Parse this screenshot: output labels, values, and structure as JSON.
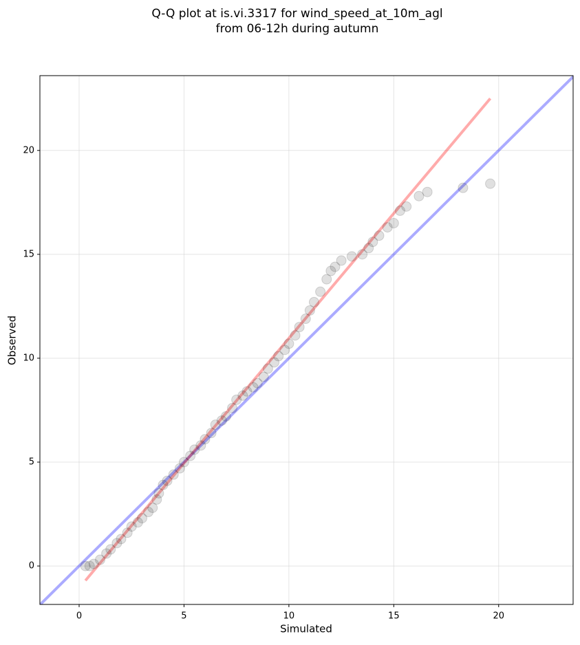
{
  "chart_data": {
    "type": "scatter",
    "title": [
      "Q-Q plot at is.vi.3317 for wind_speed_at_10m_agl",
      "from 06-12h during autumn"
    ],
    "xlabel": "Simulated",
    "ylabel": "Observed",
    "xlim": [
      -1.87,
      23.55
    ],
    "ylim": [
      -1.85,
      23.6
    ],
    "xticks": [
      0,
      5,
      10,
      15,
      20
    ],
    "yticks": [
      0,
      5,
      10,
      15,
      20
    ],
    "grid": true,
    "points": {
      "color": "#000000",
      "x": [
        0.3,
        0.5,
        0.7,
        1,
        1.3,
        1.5,
        1.8,
        2,
        2.3,
        2.5,
        2.8,
        3,
        3.3,
        3.5,
        3.7,
        3.8,
        4,
        4.2,
        4.5,
        4.8,
        5,
        5.3,
        5.5,
        5.8,
        6,
        6.3,
        6.5,
        6.8,
        7,
        7.3,
        7.5,
        7.8,
        8,
        8.3,
        8.5,
        8.8,
        9,
        9.3,
        9.5,
        9.8,
        10,
        10.3,
        10.5,
        10.8,
        11,
        11.2,
        11.5,
        11.8,
        12,
        12.2,
        12.5,
        13,
        13.5,
        13.8,
        14,
        14.3,
        14.7,
        15,
        15.3,
        15.6,
        16.2,
        16.6,
        18.3,
        19.6
      ],
      "y": [
        0,
        0,
        0.1,
        0.3,
        0.6,
        0.8,
        1.1,
        1.3,
        1.6,
        1.9,
        2.1,
        2.3,
        2.6,
        2.8,
        3.2,
        3.5,
        3.9,
        4.1,
        4.4,
        4.7,
        5.0,
        5.3,
        5.6,
        5.8,
        6.1,
        6.4,
        6.8,
        7.0,
        7.2,
        7.6,
        8.0,
        8.2,
        8.4,
        8.6,
        8.8,
        9.1,
        9.5,
        9.8,
        10.1,
        10.4,
        10.7,
        11.1,
        11.5,
        11.9,
        12.3,
        12.7,
        13.2,
        13.8,
        14.2,
        14.4,
        14.7,
        14.9,
        15.0,
        15.3,
        15.6,
        15.9,
        16.3,
        16.5,
        17.1,
        17.3,
        17.8,
        18.0,
        18.2,
        18.4
      ]
    },
    "lines": [
      {
        "color": "#0000ff",
        "x": [
          -1.87,
          23.55
        ],
        "y": [
          -1.87,
          23.55
        ]
      },
      {
        "color": "#ff0000",
        "x": [
          0.3,
          19.6
        ],
        "y": [
          -0.7,
          22.5
        ]
      }
    ]
  }
}
